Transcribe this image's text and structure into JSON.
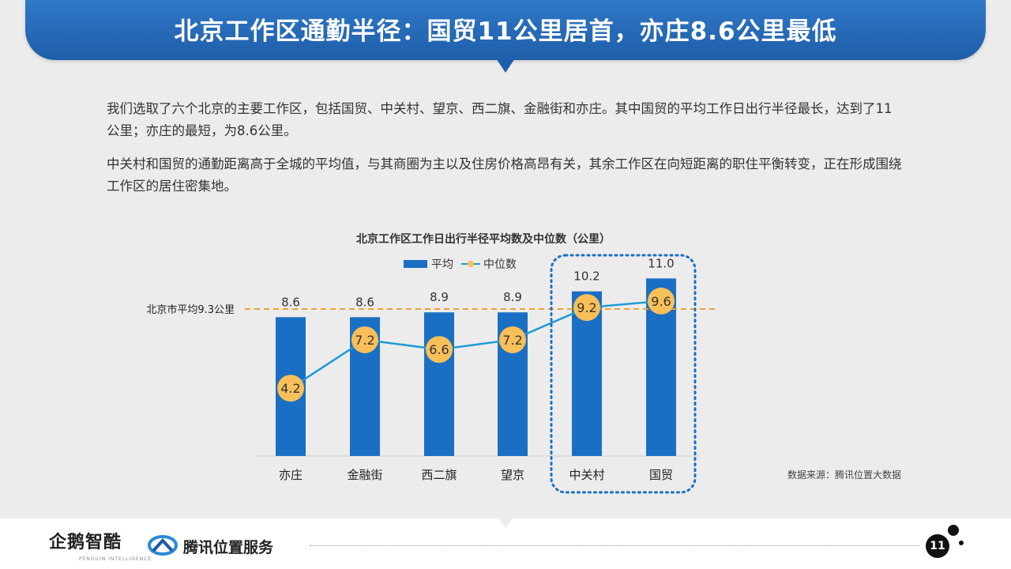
{
  "header": {
    "title": "北京工作区通勤半径：国贸11公里居首，亦庄8.6公里最低"
  },
  "body": {
    "paragraph1": "我们选取了六个北京的主要工作区，包括国贸、中关村、望京、西二旗、金融街和亦庄。其中国贸的平均工作日出行半径最长，达到了11公里；亦庄的最短，为8.6公里。",
    "paragraph2": "中关村和国贸的通勤距离高于全城的平均值，与其商圈为主以及住房价格高昂有关，其余工作区在向短距离的职住平衡转变，正在形成围绕工作区的居住密集地。"
  },
  "chart_data": {
    "type": "bar",
    "title": "北京工作区工作日出行半径平均数及中位数（公里）",
    "categories": [
      "亦庄",
      "金融街",
      "西二旗",
      "望京",
      "中关村",
      "国贸"
    ],
    "series": [
      {
        "name": "平均",
        "type": "bar",
        "values": [
          8.6,
          8.6,
          8.9,
          8.9,
          10.2,
          11.0
        ],
        "labels": [
          "8.6",
          "8.6",
          "8.9",
          "8.9",
          "10.2",
          "11.0"
        ],
        "color": "#1a6fc4"
      },
      {
        "name": "中位数",
        "type": "line",
        "values": [
          4.2,
          7.2,
          6.6,
          7.2,
          9.2,
          9.6
        ],
        "labels": [
          "4.2",
          "7.2",
          "6.6",
          "7.2",
          "9.2",
          "9.6"
        ],
        "color": "#1e9ad6",
        "marker_color": "#f9bf58"
      }
    ],
    "reference_line": {
      "label": "北京市平均9.3公里",
      "value": 9.3,
      "color": "#f0a030",
      "style": "dashed"
    },
    "highlight": {
      "categories": [
        "中关村",
        "国贸"
      ],
      "color": "#1a6fc4",
      "style": "dotted"
    },
    "ylim": [
      0,
      11.8
    ],
    "grid": false,
    "legend": "top",
    "source": "数据来源：腾讯位置大数据"
  },
  "footer": {
    "logo_left": "企鹅智酷",
    "logo_left_sub": "PENGUIN INTELLIGENCE",
    "logo_right": "腾讯位置服务",
    "page_number": "11"
  }
}
